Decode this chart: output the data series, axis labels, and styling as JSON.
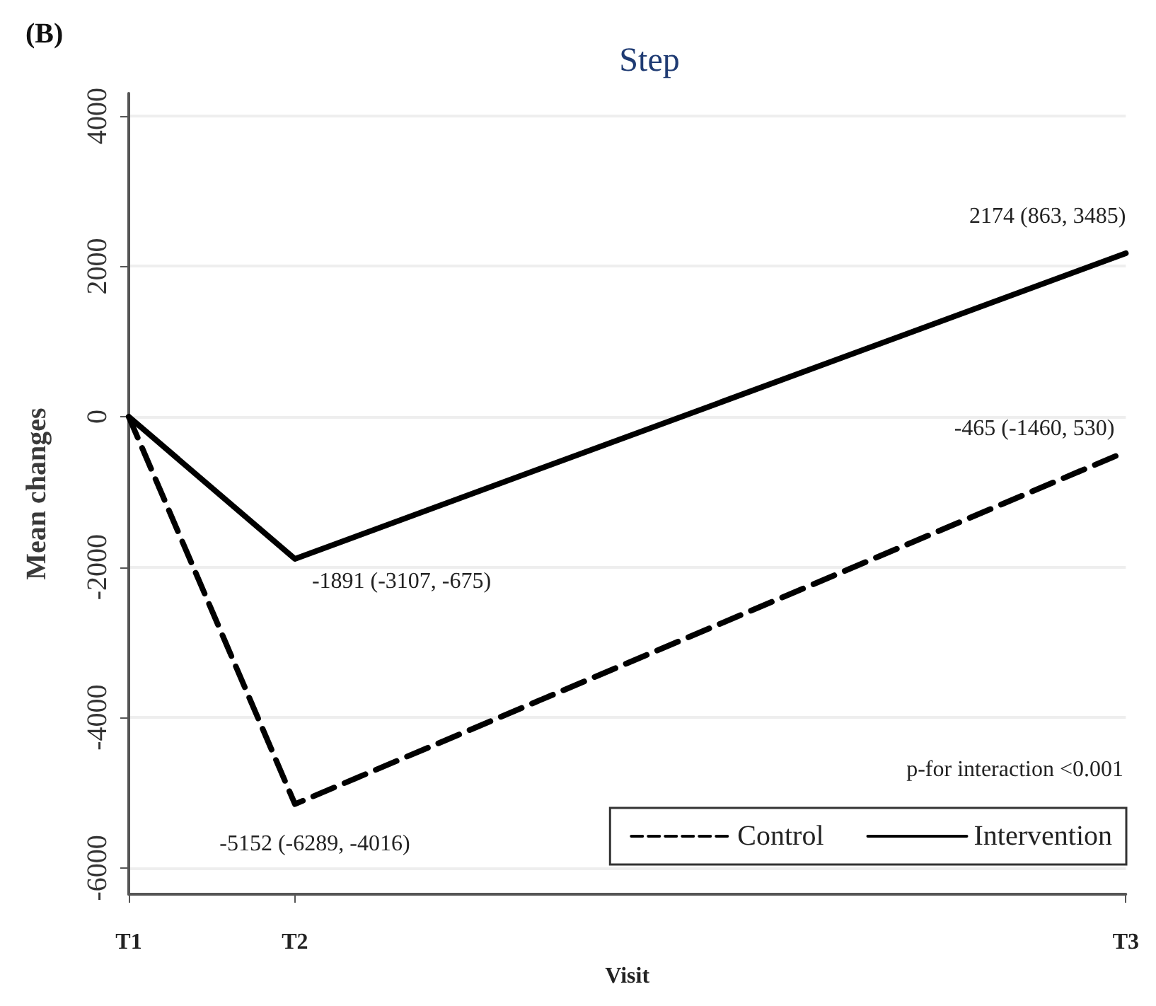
{
  "chart_data": {
    "type": "line",
    "title": "Step",
    "xlabel": "Visit",
    "ylabel": "Mean changes",
    "categories": [
      "T1",
      "T2",
      null,
      null,
      null,
      null,
      "T3"
    ],
    "ylim": [
      -6350,
      4300
    ],
    "yticks": [
      -6000,
      -4000,
      -2000,
      0,
      2000,
      4000
    ],
    "series": [
      {
        "name": "Control",
        "color": "#000000",
        "line_style": "dashed",
        "values": [
          0,
          -5152,
          null,
          null,
          null,
          null,
          -465
        ]
      },
      {
        "name": "Intervention",
        "color": "#000000",
        "line_style": "solid",
        "values": [
          0,
          -1891,
          null,
          null,
          null,
          null,
          2174
        ]
      }
    ],
    "marker": "none",
    "grid": "y",
    "legend": "bottom right",
    "annotations": [
      "(B)",
      "p-for interaction <0.001",
      {
        "text": "-1891 (-3107, -675)",
        "x": "T2",
        "y": -1891
      },
      {
        "text": "-5152 (-6289, -4016)",
        "x": "T2",
        "y": -5152
      },
      {
        "text": "2174 (863, 3485)",
        "x": "T3",
        "y": 2174
      },
      {
        "text": "-465 (-1460, 530)",
        "x": "T3",
        "y": -465
      }
    ]
  }
}
